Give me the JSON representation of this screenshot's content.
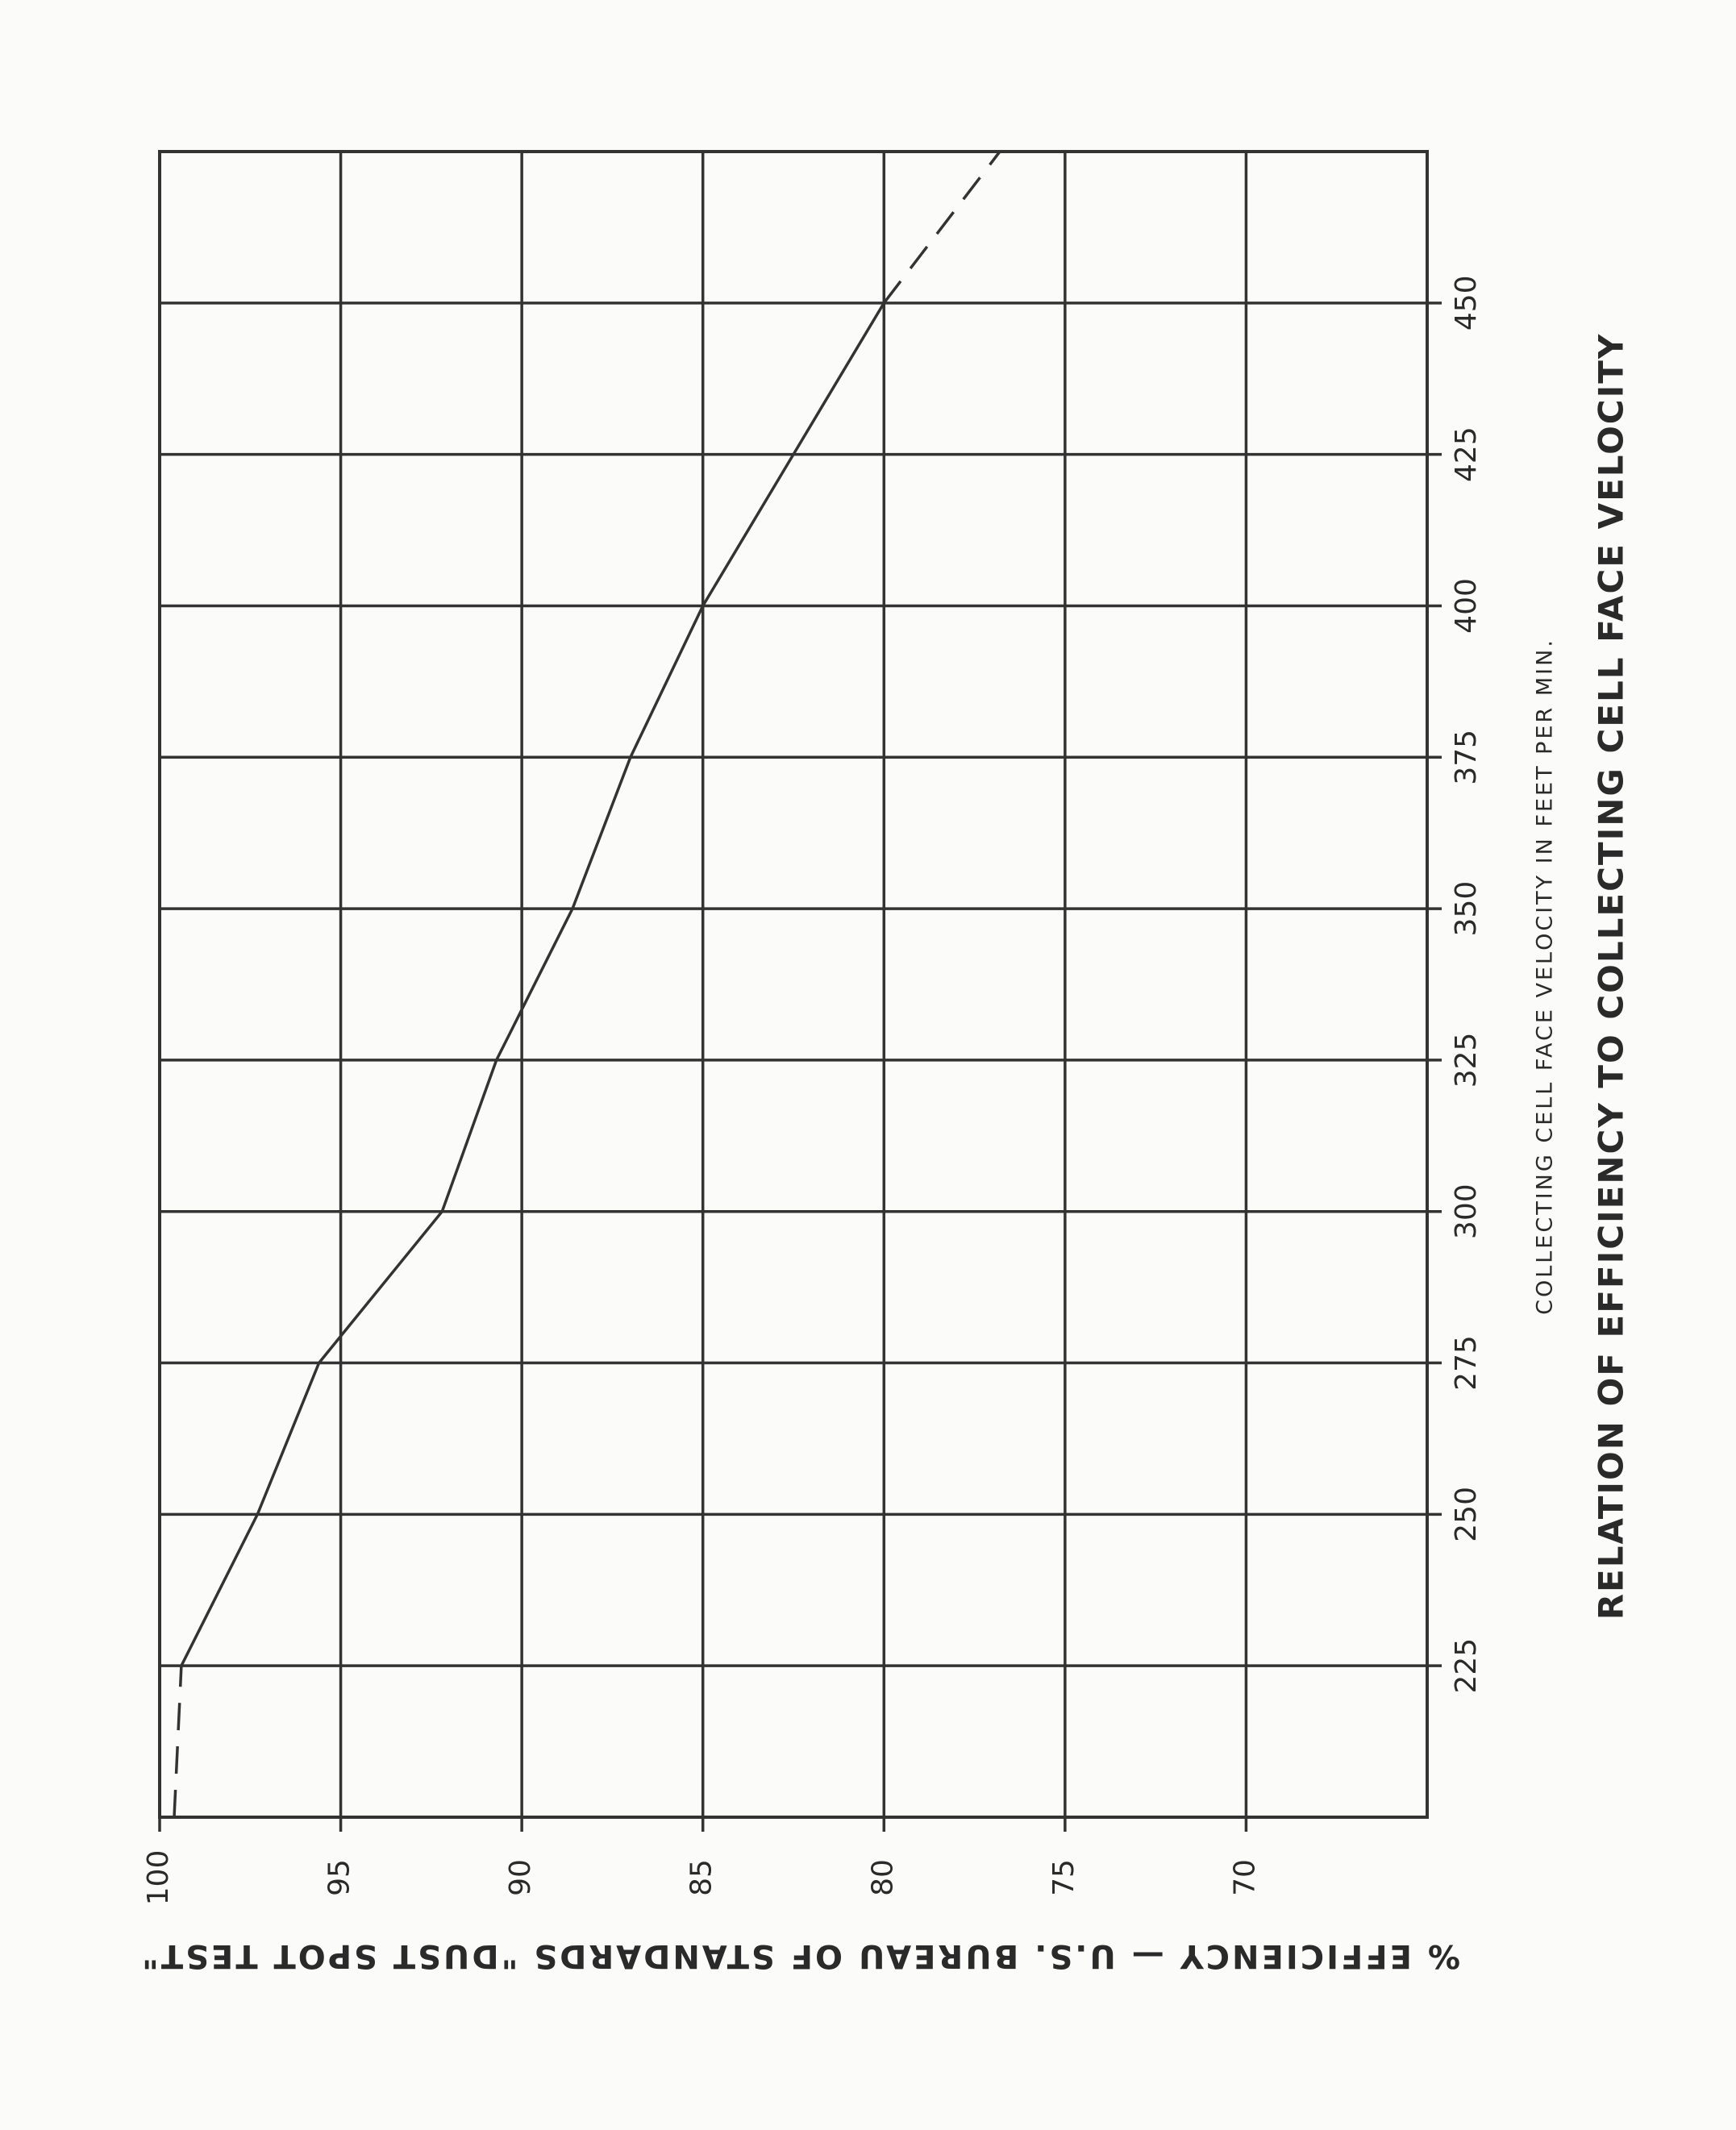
{
  "chart_data": {
    "type": "line",
    "title": "RELATION OF EFFICIENCY TO COLLECTING CELL FACE VELOCITY",
    "xlabel": "COLLECTING CELL FACE VELOCITY IN FEET PER MIN.",
    "ylabel": "% EFFICIENCY — U.S. BUREAU OF STANDARDS \"DUST SPOT TEST\"",
    "x": [
      200,
      225,
      250,
      275,
      300,
      325,
      350,
      375,
      400,
      425,
      450,
      475
    ],
    "series": [
      {
        "color": "#333333",
        "dashed": false,
        "values": [
          null,
          99.4,
          97.3,
          95.6,
          92.2,
          90.7,
          88.6,
          87.0,
          85.0,
          82.5,
          80.0,
          null
        ]
      },
      {
        "color": "#333333",
        "dashed": true,
        "values": [
          99.6,
          99.4,
          null,
          null,
          null,
          null,
          null,
          null,
          null,
          null,
          80.0,
          76.8
        ]
      }
    ],
    "xlim": [
      200,
      475
    ],
    "xticks": [
      225,
      250,
      275,
      300,
      325,
      350,
      375,
      400,
      425,
      450
    ],
    "ylim": [
      65,
      100
    ],
    "yticks": [
      100,
      95,
      90,
      85,
      80,
      75,
      70
    ],
    "grid": true
  }
}
